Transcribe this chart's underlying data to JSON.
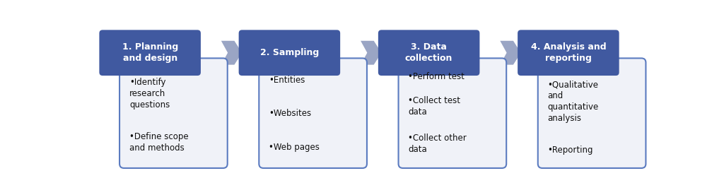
{
  "background_color": "#ffffff",
  "header_color": "#4059a0",
  "bullet_box_facecolor": "#f0f2f8",
  "bullet_box_edgecolor": "#5b7bc0",
  "arrow_color": "#9aa5c4",
  "header_text_color": "#ffffff",
  "bullet_text_color": "#111111",
  "steps": [
    {
      "header": "1. Planning\nand design",
      "bullets": [
        "Identify\nresearch\nquestions",
        "Define scope\nand methods"
      ]
    },
    {
      "header": "2. Sampling",
      "bullets": [
        "Entities",
        "Websites",
        "Web pages"
      ]
    },
    {
      "header": "3. Data\ncollection",
      "bullets": [
        "Perform test",
        "Collect test\ndata",
        "Collect other\ndata"
      ]
    },
    {
      "header": "4. Analysis and\nreporting",
      "bullets": [
        "Qualitative\nand\nquantitative\nanalysis",
        "Reporting"
      ]
    }
  ],
  "figsize": [
    10.24,
    2.76
  ],
  "dpi": 100
}
